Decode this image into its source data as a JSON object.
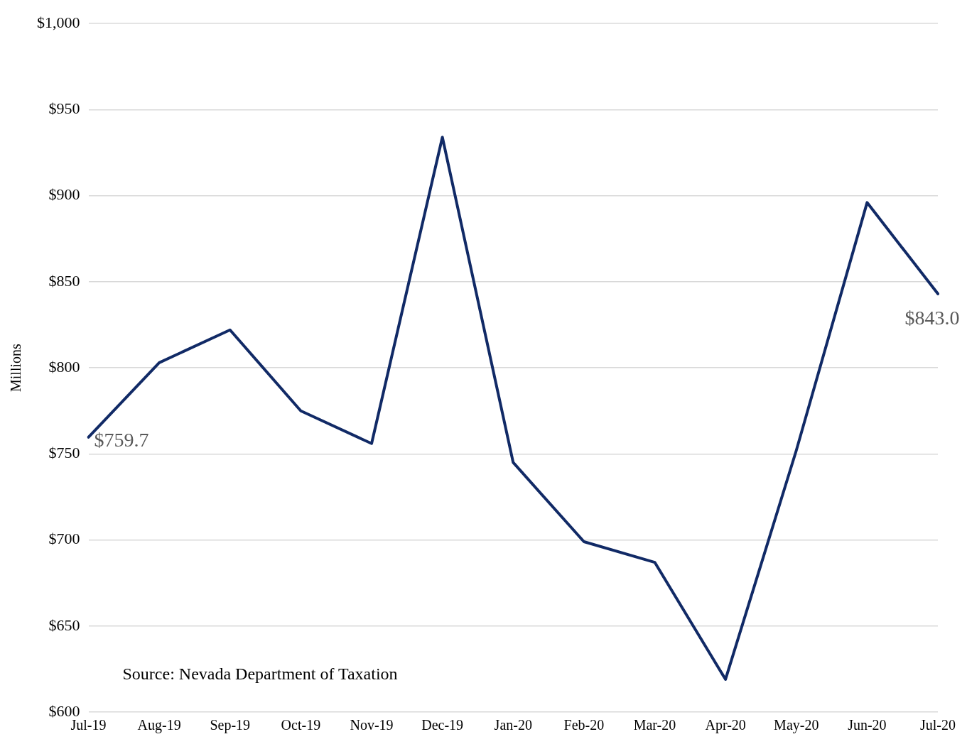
{
  "chart_data": {
    "type": "line",
    "ylabel": "Millions",
    "categories": [
      "Jul-19",
      "Aug-19",
      "Sep-19",
      "Oct-19",
      "Nov-19",
      "Dec-19",
      "Jan-20",
      "Feb-20",
      "Mar-20",
      "Apr-20",
      "May-20",
      "Jun-20",
      "Jul-20"
    ],
    "series": [
      {
        "color": "#112a66",
        "values": [
          759.7,
          803,
          822,
          775,
          756,
          934,
          745,
          699,
          687,
          619,
          752,
          896,
          843.0
        ],
        "value_labels": [
          "$759.7",
          null,
          null,
          null,
          null,
          null,
          null,
          null,
          null,
          null,
          null,
          null,
          "$843.0"
        ]
      }
    ],
    "ylim": [
      600,
      1000
    ],
    "yticks": [
      {
        "value": 600,
        "label": "$600"
      },
      {
        "value": 650,
        "label": "$650"
      },
      {
        "value": 700,
        "label": "$700"
      },
      {
        "value": 750,
        "label": "$750"
      },
      {
        "value": 800,
        "label": "$800"
      },
      {
        "value": 850,
        "label": "$850"
      },
      {
        "value": 900,
        "label": "$900"
      },
      {
        "value": 950,
        "label": "$950"
      },
      {
        "value": 1000,
        "label": "$1,000"
      }
    ],
    "grid": "y",
    "legend": false,
    "marker": "none",
    "line_style": "solid",
    "annotations": [
      "Source: Nevada Department of Taxation"
    ]
  }
}
